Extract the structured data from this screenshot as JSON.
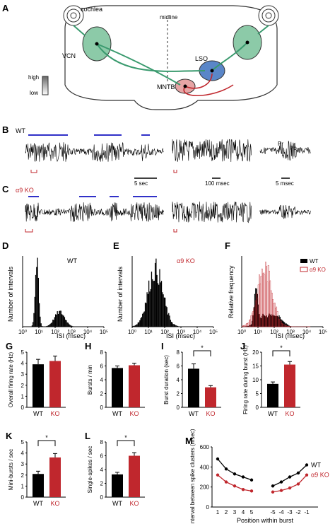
{
  "panels": {
    "A": {
      "letter": "A",
      "cochlea": "cochlea",
      "midline": "midline",
      "vcn": "VCN",
      "lso": "LSO",
      "mntb": "MNTB",
      "legend_high": "high",
      "legend_low": "low"
    },
    "B": {
      "letter": "B",
      "genotype": "WT",
      "scale1": "5 sec",
      "scale2": "100 msec",
      "scale3": "5 msec",
      "pr": "Pr",
      "po": "Po"
    },
    "C": {
      "letter": "C",
      "genotype": "α9 KO"
    },
    "D": {
      "letter": "D",
      "ylabel": "Number of intervals",
      "xlabel": "ISI (msec)",
      "label": "WT",
      "ticks": [
        "10⁰",
        "10¹",
        "10²",
        "10³",
        "10⁴",
        "10⁵"
      ]
    },
    "E": {
      "letter": "E",
      "ylabel": "Number of intervals",
      "xlabel": "ISI (msec)",
      "label": "α9 KO",
      "ticks": [
        "10⁰",
        "10¹",
        "10²",
        "10³",
        "10⁴",
        "10⁵"
      ]
    },
    "F": {
      "letter": "F",
      "ylabel": "Relative frequency",
      "xlabel": "ISI (msec)",
      "legend_wt": "WT",
      "legend_ko": "α9 KO",
      "ticks": [
        "10⁰",
        "10¹",
        "10²",
        "10³",
        "10⁴",
        "10⁵"
      ]
    }
  },
  "chart_data": [
    {
      "id": "G",
      "type": "bar",
      "ylabel": "Overall firing rate (Hz)",
      "categories": [
        "WT",
        "KO"
      ],
      "values": [
        3.9,
        4.2
      ],
      "errors": [
        0.45,
        0.45
      ],
      "ylim": [
        0,
        5
      ],
      "yticks": [
        0,
        1,
        2,
        3,
        4,
        5
      ],
      "significant": false
    },
    {
      "id": "H",
      "type": "bar",
      "ylabel": "Bursts / min",
      "categories": [
        "WT",
        "KO"
      ],
      "values": [
        5.7,
        6.1
      ],
      "errors": [
        0.3,
        0.3
      ],
      "ylim": [
        0,
        8
      ],
      "yticks": [
        0,
        2,
        4,
        6,
        8
      ],
      "significant": false
    },
    {
      "id": "I",
      "type": "bar",
      "ylabel": "Burst duration (sec)",
      "categories": [
        "WT",
        "KO"
      ],
      "values": [
        5.6,
        2.9
      ],
      "errors": [
        0.7,
        0.25
      ],
      "ylim": [
        0,
        8
      ],
      "yticks": [
        0,
        2,
        4,
        6,
        8
      ],
      "significant": true,
      "sig_label": "*"
    },
    {
      "id": "J",
      "type": "bar",
      "ylabel": "Firing rate during burst (Hz)",
      "categories": [
        "WT",
        "KO"
      ],
      "values": [
        8.5,
        15.5
      ],
      "errors": [
        0.7,
        1.1
      ],
      "ylim": [
        0,
        20
      ],
      "yticks": [
        0,
        5,
        10,
        15,
        20
      ],
      "significant": true,
      "sig_label": "*"
    },
    {
      "id": "K",
      "type": "bar",
      "ylabel": "Mini-bursts / sec",
      "categories": [
        "WT",
        "KO"
      ],
      "values": [
        2.1,
        3.6
      ],
      "errors": [
        0.25,
        0.35
      ],
      "ylim": [
        0,
        5
      ],
      "yticks": [
        0,
        1,
        2,
        3,
        4,
        5
      ],
      "significant": true,
      "sig_label": "*"
    },
    {
      "id": "L",
      "type": "bar",
      "ylabel": "Single-spikes / sec",
      "categories": [
        "WT",
        "KO"
      ],
      "values": [
        3.3,
        6.0
      ],
      "errors": [
        0.3,
        0.45
      ],
      "ylim": [
        0,
        8
      ],
      "yticks": [
        0,
        2,
        4,
        6,
        8
      ],
      "significant": true,
      "sig_label": "*"
    },
    {
      "id": "M",
      "type": "line",
      "ylabel": "Interval between spike clusters (msec)",
      "xlabel": "Position within burst",
      "ylim": [
        0,
        600
      ],
      "yticks": [
        0,
        200,
        400,
        600
      ],
      "categories_left": [
        "1",
        "2",
        "3",
        "4",
        "5"
      ],
      "categories_right": [
        "-5",
        "-4",
        "-3",
        "-2",
        "-1"
      ],
      "series": [
        {
          "name": "WT",
          "color": "#000000",
          "left": [
            480,
            380,
            330,
            300,
            270
          ],
          "right": [
            210,
            250,
            300,
            340,
            420
          ]
        },
        {
          "name": "α9 KO",
          "color": "#c0272d",
          "left": [
            320,
            250,
            210,
            175,
            160
          ],
          "right": [
            150,
            165,
            190,
            230,
            320
          ]
        }
      ]
    }
  ],
  "bar_labels": {
    "G": "G",
    "H": "H",
    "I": "I",
    "J": "J",
    "K": "K",
    "L": "L",
    "M": "M"
  }
}
